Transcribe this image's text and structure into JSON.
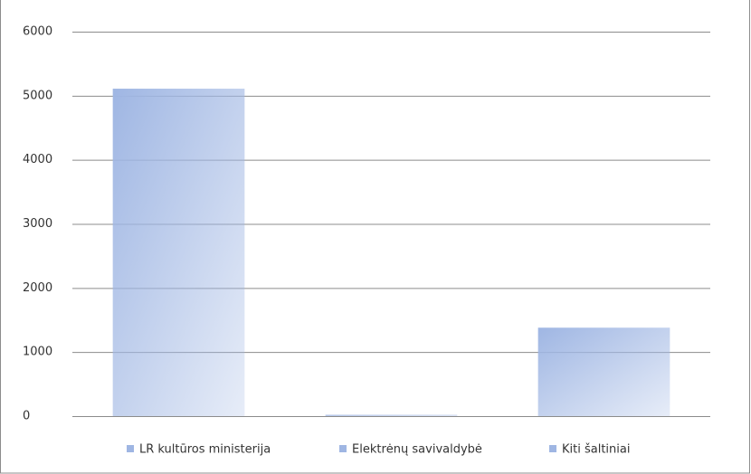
{
  "chart_data": {
    "type": "bar",
    "categories": [
      "LR kultūros ministerija",
      "Elektrėnų savivaldybė",
      "Kiti šaltiniai"
    ],
    "values": [
      5110,
      20,
      1380
    ],
    "color": "#9fb6e3",
    "ylim": [
      0,
      6000
    ],
    "yticks": [
      0,
      1000,
      2000,
      3000,
      4000,
      5000,
      6000
    ],
    "grid": true,
    "legend": "bottom"
  }
}
